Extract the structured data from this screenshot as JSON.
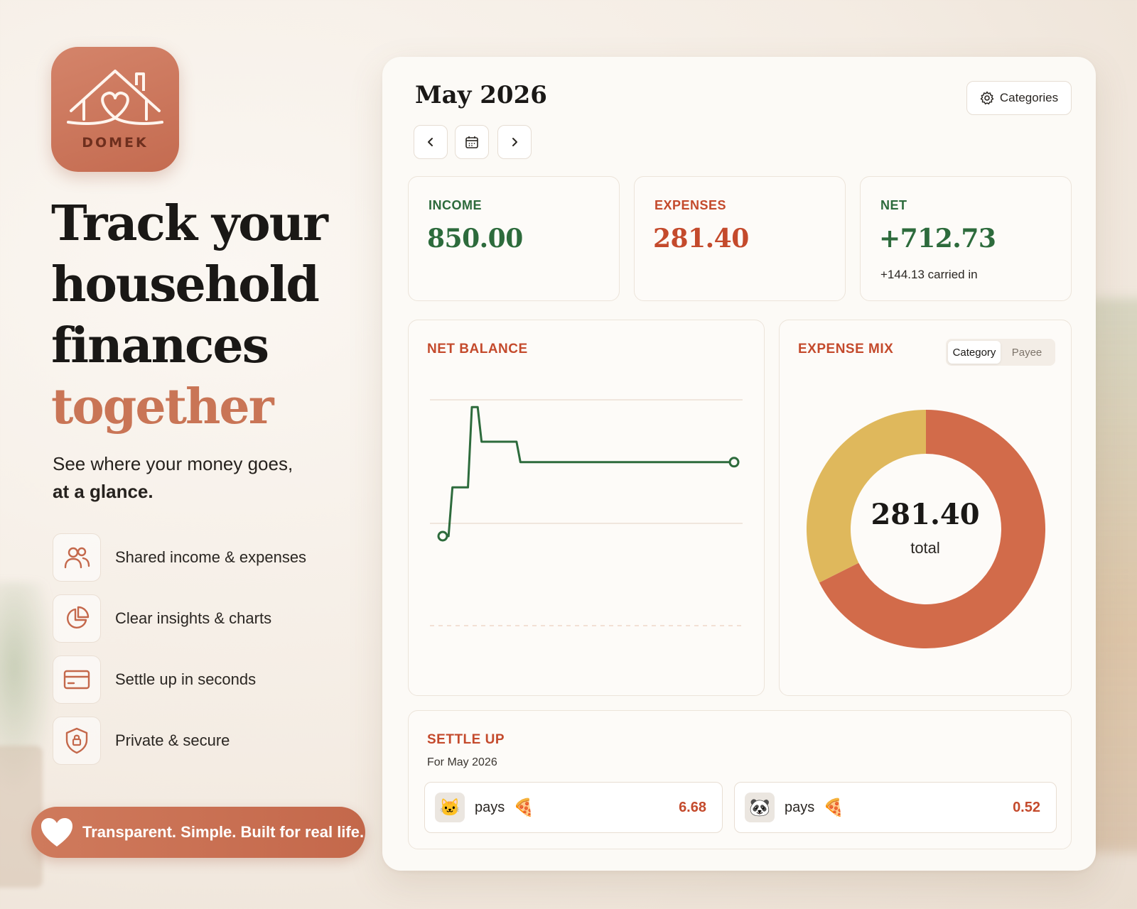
{
  "brand": {
    "app_name": "DOMEK",
    "accent_color": "#c97556"
  },
  "hero": {
    "headline_lines": [
      "Track your",
      "household",
      "finances"
    ],
    "headline_accent": "together",
    "subhead": "See where your money goes,",
    "subhead_bold": "at a glance.",
    "features": [
      {
        "icon": "people-icon",
        "label": "Shared income & expenses"
      },
      {
        "icon": "pie-chart-icon",
        "label": "Clear insights & charts"
      },
      {
        "icon": "credit-card-icon",
        "label": "Settle up in seconds"
      },
      {
        "icon": "shield-lock-icon",
        "label": "Private & secure"
      }
    ],
    "pill": {
      "icon": "heart-icon",
      "label": "Transparent. Simple. Built for real life."
    }
  },
  "dashboard": {
    "month": "May 2026",
    "categories_button": "Categories",
    "nav": {
      "prev": "chevron-left-icon",
      "calendar": "calendar-icon",
      "next": "chevron-right-icon"
    },
    "stats": {
      "income": {
        "label": "INCOME",
        "value": "850.00",
        "color": "#2d6b3c"
      },
      "expenses": {
        "label": "EXPENSES",
        "value": "281.40",
        "color": "#c44a2c"
      },
      "net": {
        "label": "NET",
        "value": "+712.73",
        "sub": "+144.13 carried in",
        "color": "#2d6b3c"
      }
    },
    "net_balance": {
      "title": "NET BALANCE"
    },
    "expense_mix": {
      "title": "EXPENSE MIX",
      "tabs": [
        "Category",
        "Payee"
      ],
      "active_tab": "Category",
      "total_value": "281.40",
      "total_label": "total"
    },
    "settle_up": {
      "title": "SETTLE UP",
      "subtitle": "For May 2026",
      "rows": [
        {
          "avatar": "🐱",
          "verb": "pays",
          "to": "🍕",
          "amount": "6.68"
        },
        {
          "avatar": "🐼",
          "verb": "pays",
          "to": "🍕",
          "amount": "0.52"
        }
      ]
    }
  },
  "chart_data": [
    {
      "type": "line",
      "title": "NET BALANCE",
      "x": [
        1,
        2,
        3,
        4,
        5,
        6,
        7,
        8,
        9,
        10,
        11,
        12,
        13,
        14,
        15,
        16,
        17,
        18,
        19,
        20,
        21,
        22,
        23,
        24,
        25,
        26,
        27,
        28,
        29,
        30,
        31
      ],
      "series": [
        {
          "values": [
            0,
            310,
            310,
            820,
            600,
            600,
            600,
            600,
            470,
            470,
            470,
            470,
            470,
            470,
            470,
            470,
            470,
            470,
            470,
            470,
            470,
            470,
            470,
            470,
            470,
            470,
            470,
            470,
            470,
            470,
            470
          ],
          "color": "#2d6b3c"
        }
      ],
      "grid": true,
      "legend": "none"
    },
    {
      "type": "pie",
      "title": "EXPENSE MIX",
      "values": [
        190.2,
        91.2
      ],
      "colors": [
        "#d26b4a",
        "#dfb85c"
      ],
      "center_value": "281.40",
      "center_label": "total"
    }
  ]
}
